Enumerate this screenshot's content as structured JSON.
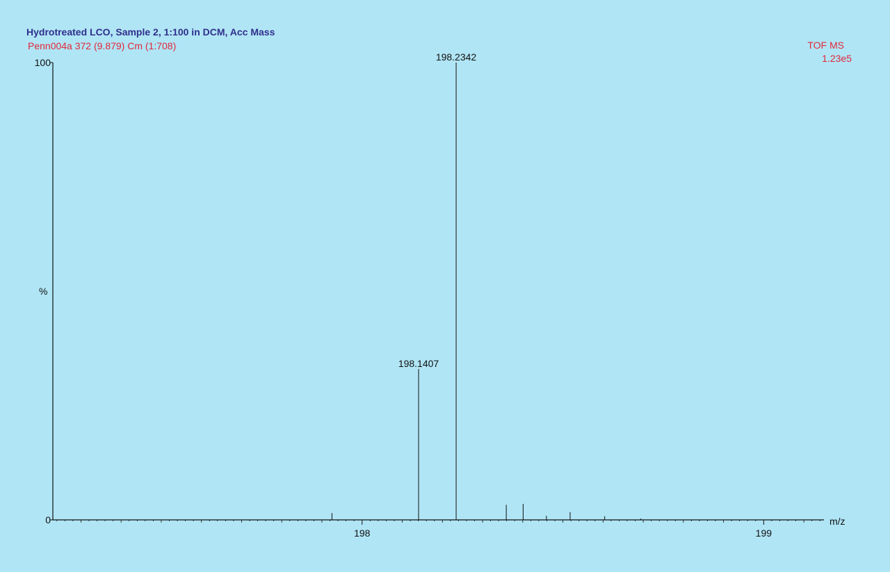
{
  "header": {
    "title": "Hydrotreated LCO, Sample 2, 1:100 in DCM, Acc Mass",
    "subtitle": "Penn004a 372 (9.879) Cm (1:708)",
    "instrument": "TOF MS",
    "intensity": "1.23e5"
  },
  "colors": {
    "background": "#b0e5f5",
    "title": "#2f2f8c",
    "subtitle": "#e0283a",
    "axis": "#111111"
  },
  "chart_data": {
    "type": "bar",
    "title": "Hydrotreated LCO, Sample 2, 1:100 in DCM, Acc Mass",
    "xlabel": "m/z",
    "ylabel": "%",
    "xlim": [
      197.23,
      199.15
    ],
    "ylim": [
      0,
      100
    ],
    "x_ticks": [
      198,
      199
    ],
    "x_tick_labels": [
      "198",
      "199"
    ],
    "y_ticks": [
      0,
      100
    ],
    "y_tick_labels": [
      "0",
      "100"
    ],
    "grid": false,
    "peaks": [
      {
        "mz": 197.925,
        "intensity": 1.5,
        "label": ""
      },
      {
        "mz": 198.1407,
        "intensity": 33.0,
        "label": "198.1407"
      },
      {
        "mz": 198.2342,
        "intensity": 100.0,
        "label": "198.2342"
      },
      {
        "mz": 198.359,
        "intensity": 3.3,
        "label": ""
      },
      {
        "mz": 198.401,
        "intensity": 3.5,
        "label": ""
      },
      {
        "mz": 198.459,
        "intensity": 0.9,
        "label": ""
      },
      {
        "mz": 198.518,
        "intensity": 1.7,
        "label": ""
      },
      {
        "mz": 198.604,
        "intensity": 0.8,
        "label": ""
      },
      {
        "mz": 198.694,
        "intensity": 0.3,
        "label": ""
      }
    ]
  }
}
